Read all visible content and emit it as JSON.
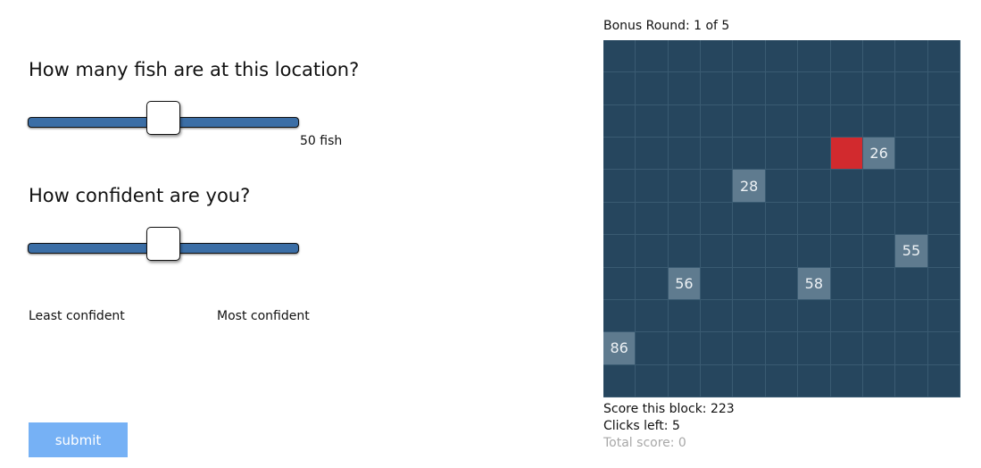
{
  "questions": {
    "fish": {
      "title": "How many fish are at this location?",
      "value": 50,
      "min": 0,
      "max": 100,
      "value_label": "50 fish"
    },
    "confidence": {
      "title": "How confident are you?",
      "value": 50,
      "min": 0,
      "max": 100,
      "min_label": "Least confident",
      "max_label": "Most confident"
    }
  },
  "submit_label": "submit",
  "game": {
    "round_label": "Bonus Round: 1 of 5",
    "rows": 11,
    "cols": 11,
    "selected_cell": {
      "row": 3,
      "col": 7
    },
    "revealed_cells": [
      {
        "row": 3,
        "col": 8,
        "value": "26"
      },
      {
        "row": 4,
        "col": 4,
        "value": "28"
      },
      {
        "row": 6,
        "col": 9,
        "value": "55"
      },
      {
        "row": 7,
        "col": 2,
        "value": "56"
      },
      {
        "row": 7,
        "col": 6,
        "value": "58"
      },
      {
        "row": 9,
        "col": 0,
        "value": "86"
      }
    ],
    "colors": {
      "grid_bg": "#26465e",
      "revealed": "#5f7b8f",
      "selected": "#d22a2e"
    }
  },
  "stats": {
    "score_block": "Score this block: 223",
    "clicks_left": "Clicks left: 5",
    "total_score": "Total score: 0"
  }
}
